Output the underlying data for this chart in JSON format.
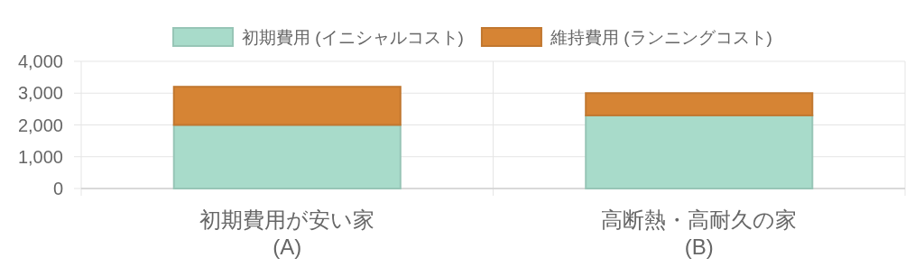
{
  "chart_data": {
    "type": "bar",
    "stacked": true,
    "categories": [
      "初期費用が安い家\n(A)",
      "高断熱・高耐久の家\n(B)"
    ],
    "series": [
      {
        "name": "初期費用 (イニシャルコスト)",
        "color": "#a8dbca",
        "values": [
          2000,
          2300
        ]
      },
      {
        "name": "維持費用 (ランニングコスト)",
        "color": "#d68434",
        "values": [
          1200,
          700
        ]
      }
    ],
    "ylim": [
      0,
      4000
    ],
    "yticks": [
      {
        "value": 0,
        "label": "0"
      },
      {
        "value": 1000,
        "label": "1,000"
      },
      {
        "value": 2000,
        "label": "2,000"
      },
      {
        "value": 3000,
        "label": "3,000"
      },
      {
        "value": 4000,
        "label": "4,000"
      }
    ],
    "grid": true,
    "legend": "top"
  }
}
